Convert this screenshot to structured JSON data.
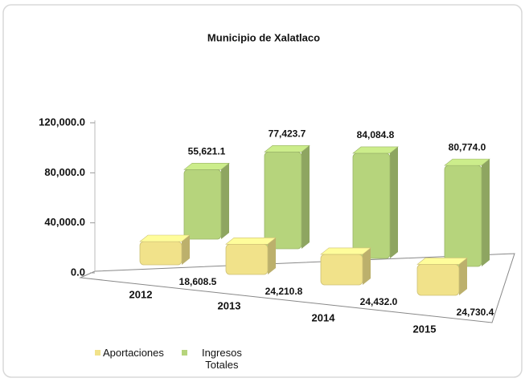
{
  "chart_data": {
    "type": "bar3d",
    "title": "Municipio de Xalatlaco",
    "categories": [
      "2012",
      "2013",
      "2014",
      "2015"
    ],
    "series": [
      {
        "name": "Aportaciones",
        "color": "#f1e28a",
        "values": [
          18608.5,
          24210.8,
          24432.0,
          24730.4
        ],
        "value_labels": [
          "18,608.5",
          "24,210.8",
          "24,432.0",
          "24,730.4"
        ]
      },
      {
        "name": "Ingresos Totales",
        "color": "#b6d47c",
        "values": [
          55621.1,
          77423.7,
          84084.8,
          80774.0
        ],
        "value_labels": [
          "55,621.1",
          "77,423.7",
          "84,084.8",
          "80,774.0"
        ]
      }
    ],
    "ylim": [
      0,
      120000
    ],
    "yticks": [
      {
        "value": 0,
        "label": "0.0"
      },
      {
        "value": 40000,
        "label": "40,000.0"
      },
      {
        "value": 80000,
        "label": "80,000.0"
      },
      {
        "value": 120000,
        "label": "120,000.0"
      }
    ]
  }
}
